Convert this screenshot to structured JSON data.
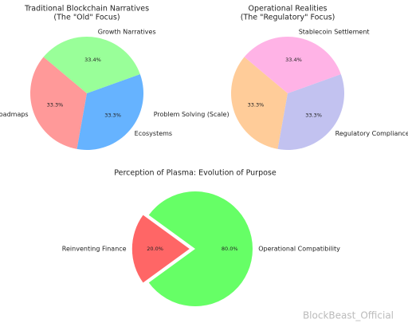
{
  "chart_data": [
    {
      "type": "pie",
      "title": "Traditional Blockchain Narratives",
      "subtitle": "(The \"Old\" Focus)",
      "categories": [
        "Roadmaps",
        "Ecosystems",
        "Growth Narratives"
      ],
      "values": [
        33.3,
        33.3,
        33.4
      ],
      "value_labels": [
        "33.3%",
        "33.3%",
        "33.4%"
      ],
      "colors": [
        "#ff9999",
        "#66b3ff",
        "#99ff99"
      ],
      "start_angle": 140
    },
    {
      "type": "pie",
      "title": "Operational Realities",
      "subtitle": "(The \"Regulatory\" Focus)",
      "categories": [
        "Problem Solving (Scale)",
        "Regulatory Compliance",
        "Stablecoin Settlement"
      ],
      "values": [
        33.3,
        33.3,
        33.4
      ],
      "value_labels": [
        "33.3%",
        "33.3%",
        "33.4%"
      ],
      "colors": [
        "#ffcc99",
        "#c2c2f0",
        "#ffb3e6"
      ],
      "start_angle": 140
    },
    {
      "type": "pie",
      "title": "Perception of Plasma: Evolution of Purpose",
      "categories": [
        "Reinventing Finance",
        "Operational Compatibility"
      ],
      "values": [
        20.0,
        80.0
      ],
      "value_labels": [
        "20.0%",
        "80.0%"
      ],
      "colors": [
        "#ff6666",
        "#66ff66"
      ],
      "start_angle": 144,
      "explode": [
        0.1,
        0
      ]
    }
  ],
  "watermark": "BlockBeast_Official"
}
